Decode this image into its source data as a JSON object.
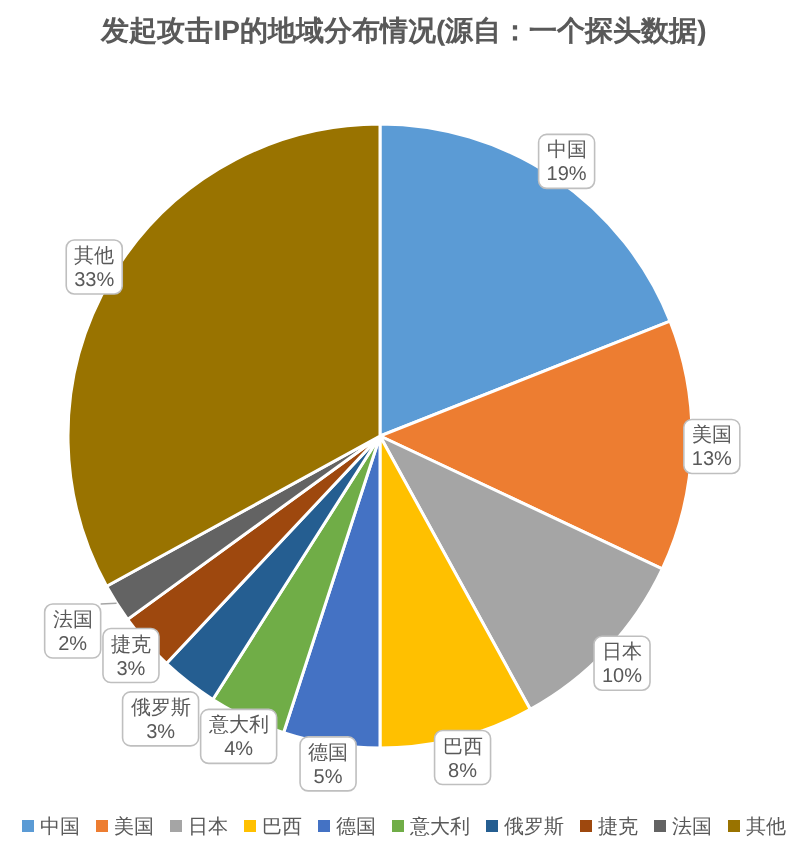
{
  "chart_data": {
    "type": "pie",
    "title": "发起攻击IP的地域分布情况(源自：一个探头数据)",
    "categories": [
      "中国",
      "美国",
      "日本",
      "巴西",
      "德国",
      "意大利",
      "俄罗斯",
      "捷克",
      "法国",
      "其他"
    ],
    "values": [
      19,
      13,
      10,
      8,
      5,
      4,
      3,
      3,
      2,
      33
    ],
    "colors": [
      "#5b9bd5",
      "#ed7d31",
      "#a5a5a5",
      "#ffc000",
      "#4472c4",
      "#70ad47",
      "#255e91",
      "#9e480e",
      "#636363",
      "#997300"
    ],
    "value_labels": [
      "19%",
      "13%",
      "10%",
      "8%",
      "5%",
      "4%",
      "3%",
      "3%",
      "2%",
      "33%"
    ],
    "legend": "bottom"
  }
}
